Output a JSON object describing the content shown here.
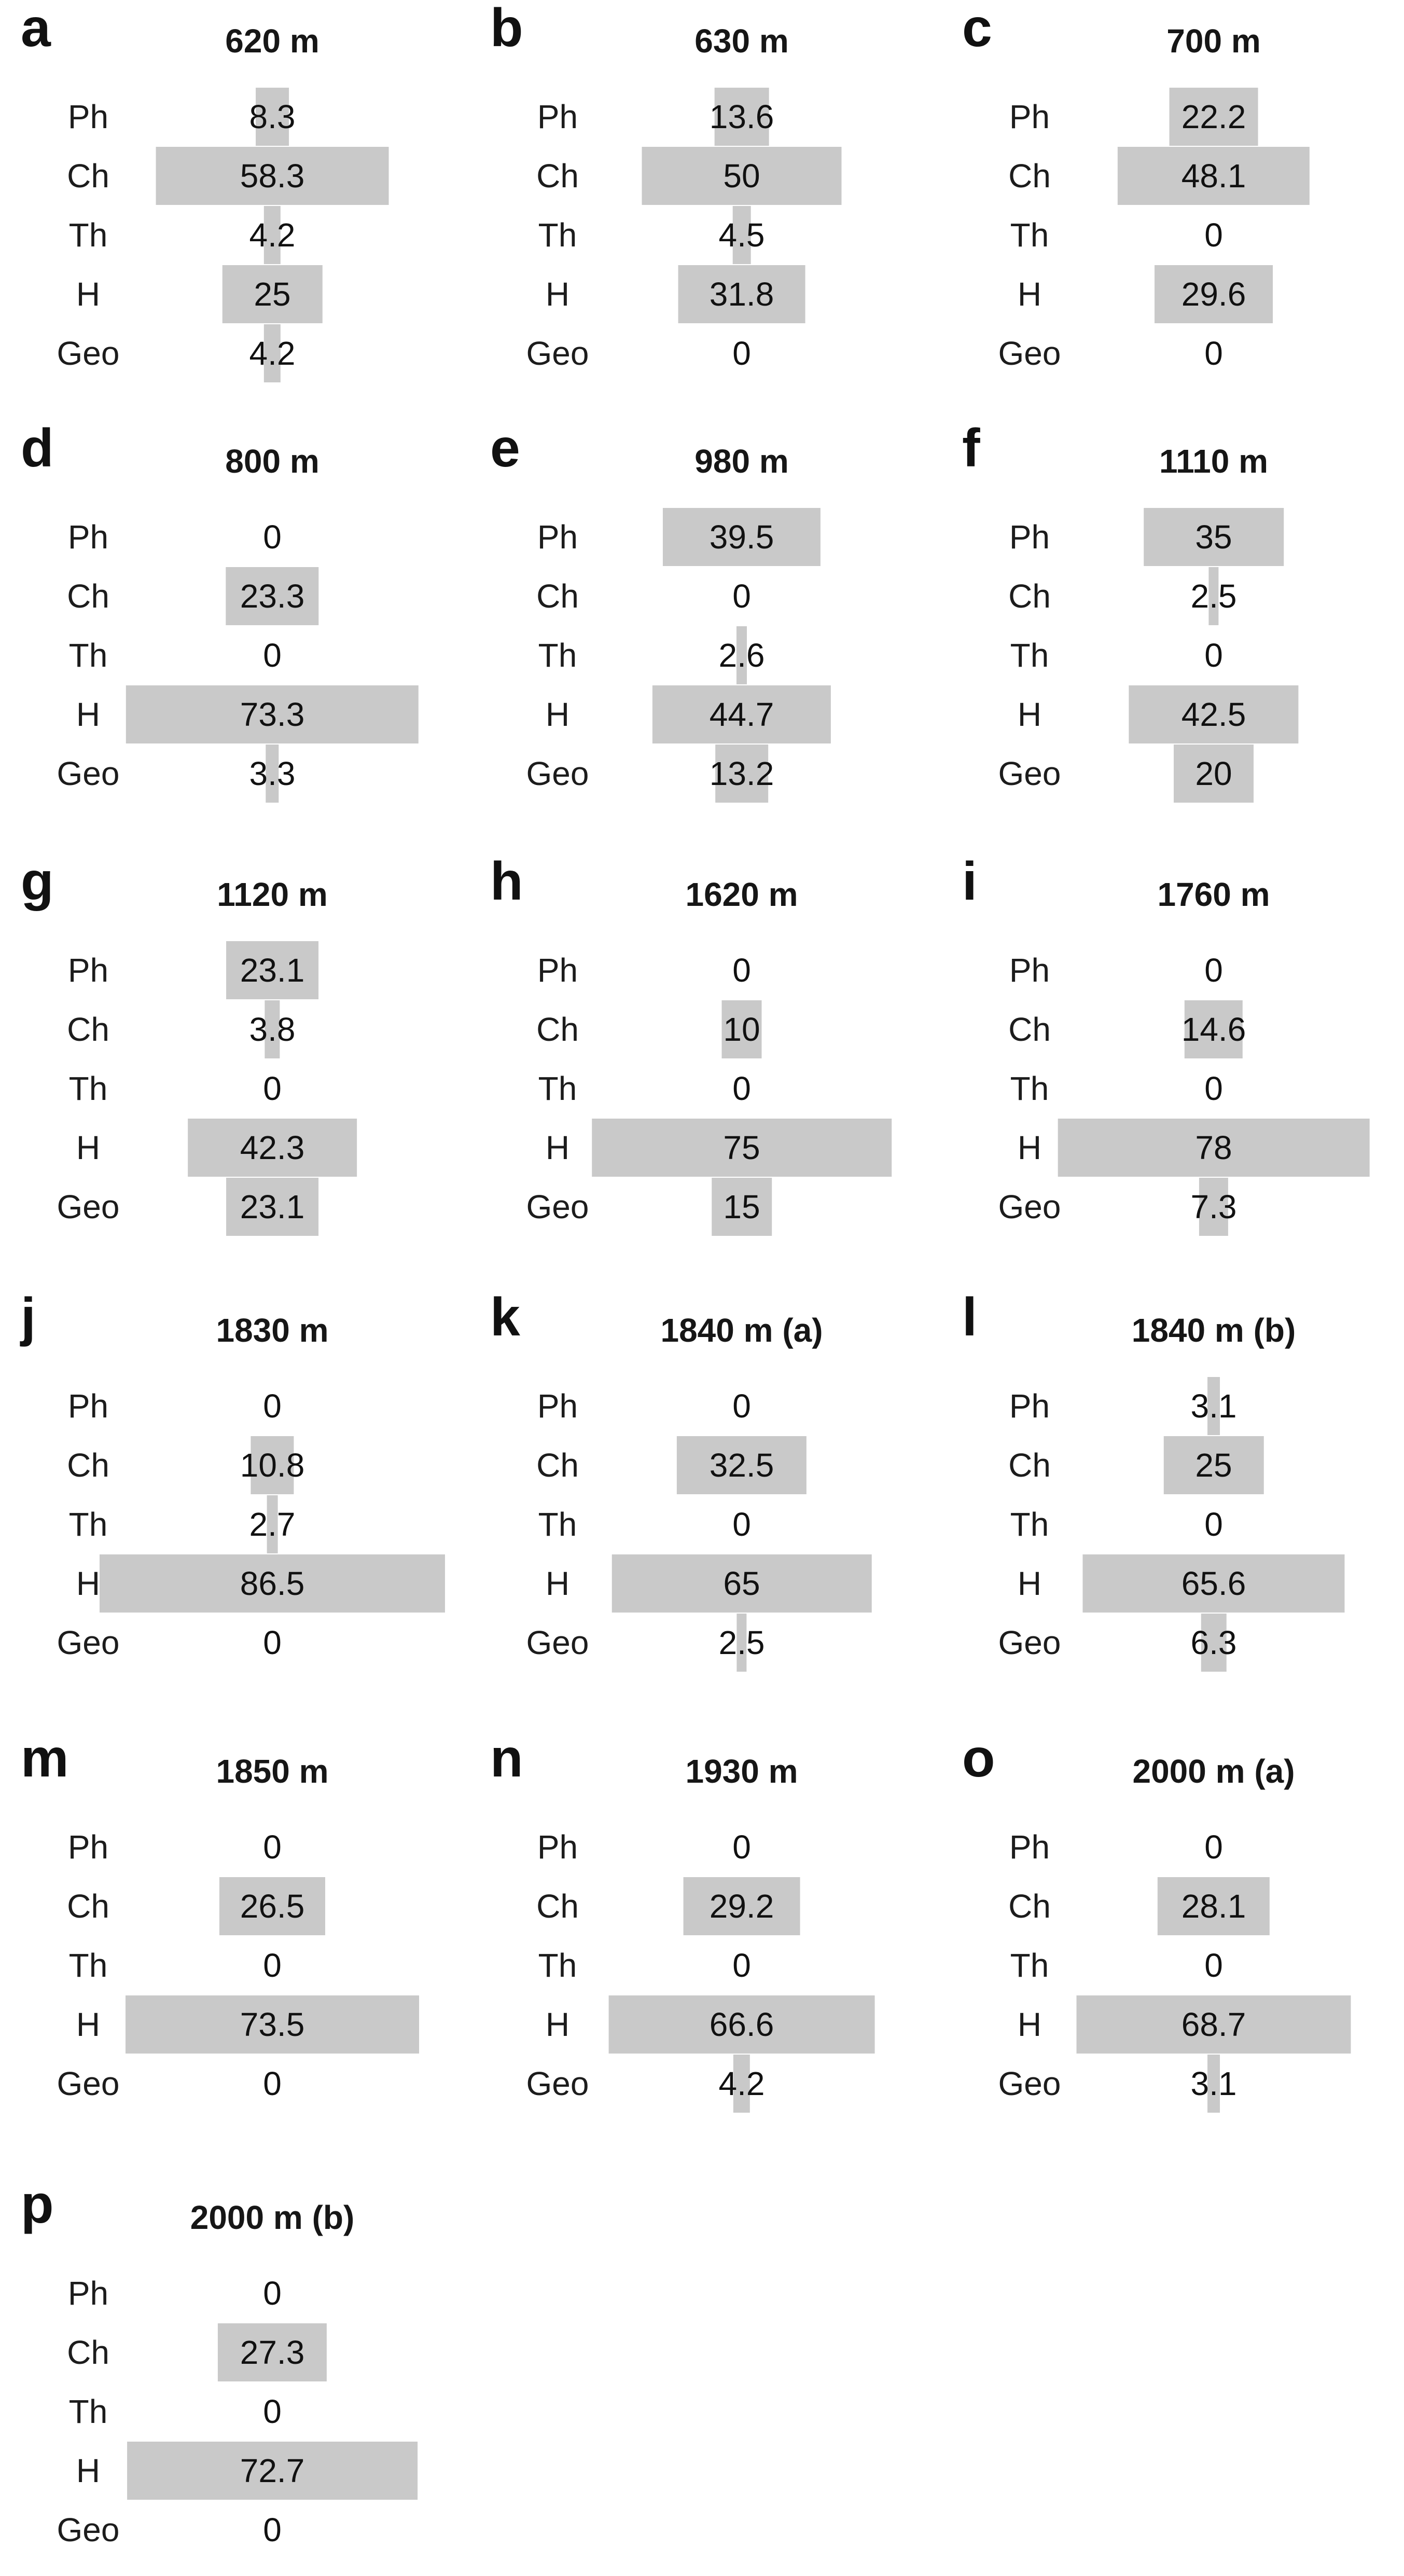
{
  "chart_data": {
    "type": "bar",
    "orientation": "horizontal-centered",
    "value_labels_shown": true,
    "grid": "off",
    "bar_color": "#c9c9c9",
    "text_color": "#161616",
    "categories": [
      "Ph",
      "Ch",
      "Th",
      "H",
      "Geo"
    ],
    "value_axis_range": [
      0,
      100
    ],
    "panels": [
      {
        "letter": "a",
        "title": "620 m",
        "values": [
          8.3,
          58.3,
          4.2,
          25,
          4.2
        ]
      },
      {
        "letter": "b",
        "title": "630 m",
        "values": [
          13.6,
          50,
          4.5,
          31.8,
          0
        ]
      },
      {
        "letter": "c",
        "title": "700 m",
        "values": [
          22.2,
          48.1,
          0,
          29.6,
          0
        ]
      },
      {
        "letter": "d",
        "title": "800 m",
        "values": [
          0,
          23.3,
          0,
          73.3,
          3.3
        ]
      },
      {
        "letter": "e",
        "title": "980 m",
        "values": [
          39.5,
          0,
          2.6,
          44.7,
          13.2
        ]
      },
      {
        "letter": "f",
        "title": "1110 m",
        "values": [
          35,
          2.5,
          0,
          42.5,
          20
        ]
      },
      {
        "letter": "g",
        "title": "1120 m",
        "values": [
          23.1,
          3.8,
          0,
          42.3,
          23.1
        ]
      },
      {
        "letter": "h",
        "title": "1620 m",
        "values": [
          0,
          10,
          0,
          75,
          15
        ]
      },
      {
        "letter": "i",
        "title": "1760 m",
        "values": [
          0,
          14.6,
          0,
          78,
          7.3
        ]
      },
      {
        "letter": "j",
        "title": "1830 m",
        "values": [
          0,
          10.8,
          2.7,
          86.5,
          0
        ]
      },
      {
        "letter": "k",
        "title": "1840 m (a)",
        "values": [
          0,
          32.5,
          0,
          65,
          2.5
        ]
      },
      {
        "letter": "l",
        "title": "1840 m (b)",
        "values": [
          3.1,
          25,
          0,
          65.6,
          6.3
        ]
      },
      {
        "letter": "m",
        "title": "1850 m",
        "values": [
          0,
          26.5,
          0,
          73.5,
          0
        ]
      },
      {
        "letter": "n",
        "title": "1930 m",
        "values": [
          0,
          29.2,
          0,
          66.6,
          4.2
        ]
      },
      {
        "letter": "o",
        "title": "2000 m (a)",
        "values": [
          0,
          28.1,
          0,
          68.7,
          3.1
        ]
      },
      {
        "letter": "p",
        "title": "2000 m (b)",
        "values": [
          0,
          27.3,
          0,
          72.7,
          0
        ]
      }
    ]
  }
}
